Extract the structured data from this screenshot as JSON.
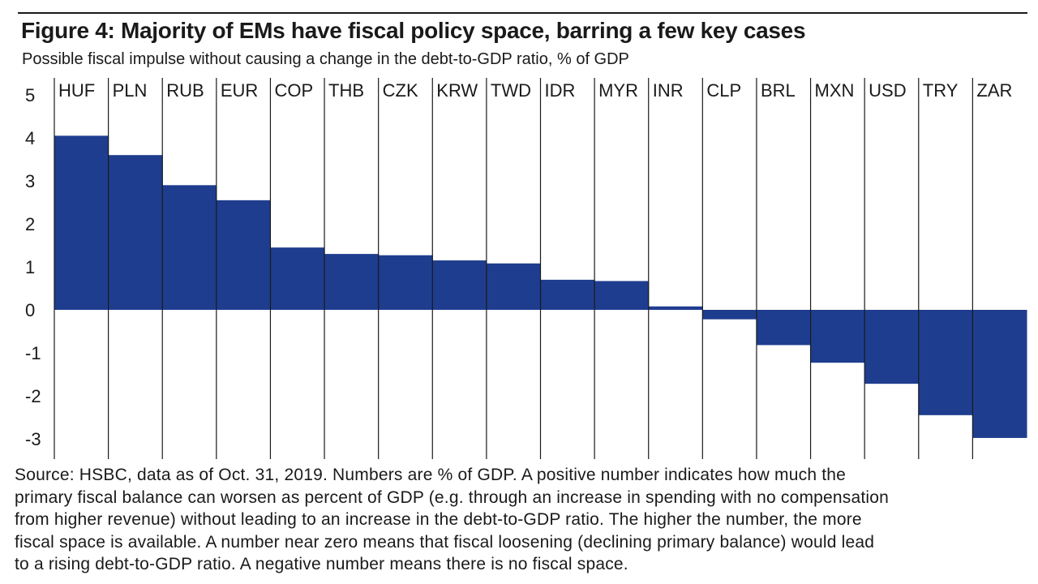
{
  "figure": {
    "title": "Figure 4: Majority of EMs have fiscal policy space, barring a few key cases",
    "subtitle": "Possible fiscal impulse without causing a change in the debt-to-GDP ratio, % of GDP",
    "source_lines": [
      "Source: HSBC, data as of Oct. 31, 2019. Numbers are % of GDP. A positive number indicates how much the",
      "primary fiscal balance can worsen as percent of GDP (e.g. through an increase in spending with no compensation",
      "from higher revenue) without leading to an increase in the debt-to-GDP ratio. The higher the number, the more",
      "fiscal space is available. A number near zero means that fiscal loosening (declining primary balance) would lead",
      "to a rising debt-to-GDP ratio. A negative number means there is no fiscal space."
    ]
  },
  "colors": {
    "bar": "#1f3d8f",
    "text": "#1a1a1a",
    "lines": "#1a1a1a"
  },
  "chart_data": {
    "type": "bar",
    "categories": [
      "HUF",
      "PLN",
      "RUB",
      "EUR",
      "COP",
      "THB",
      "CZK",
      "KRW",
      "TWD",
      "IDR",
      "MYR",
      "INR",
      "CLP",
      "BRL",
      "MXN",
      "USD",
      "TRY",
      "ZAR"
    ],
    "values": [
      4.05,
      3.6,
      2.9,
      2.55,
      1.45,
      1.3,
      1.27,
      1.15,
      1.08,
      0.7,
      0.67,
      0.08,
      -0.22,
      -0.82,
      -1.23,
      -1.72,
      -2.45,
      -2.98
    ],
    "title": "Figure 4: Majority of EMs have fiscal policy space, barring a few key cases",
    "subtitle": "Possible fiscal impulse without causing a change in the debt-to-GDP ratio, % of GDP",
    "xlabel": "",
    "ylabel": "",
    "ylim": [
      -3.4,
      5.4
    ],
    "yticks": [
      5,
      4,
      3,
      2,
      1,
      0,
      -1,
      -2,
      -3
    ],
    "ytick_labels": [
      "5",
      "4",
      "3",
      "2",
      "1",
      "0",
      "-1",
      "-2",
      "-3"
    ],
    "grid": false,
    "category_labels_position": "top",
    "legend": "none"
  }
}
